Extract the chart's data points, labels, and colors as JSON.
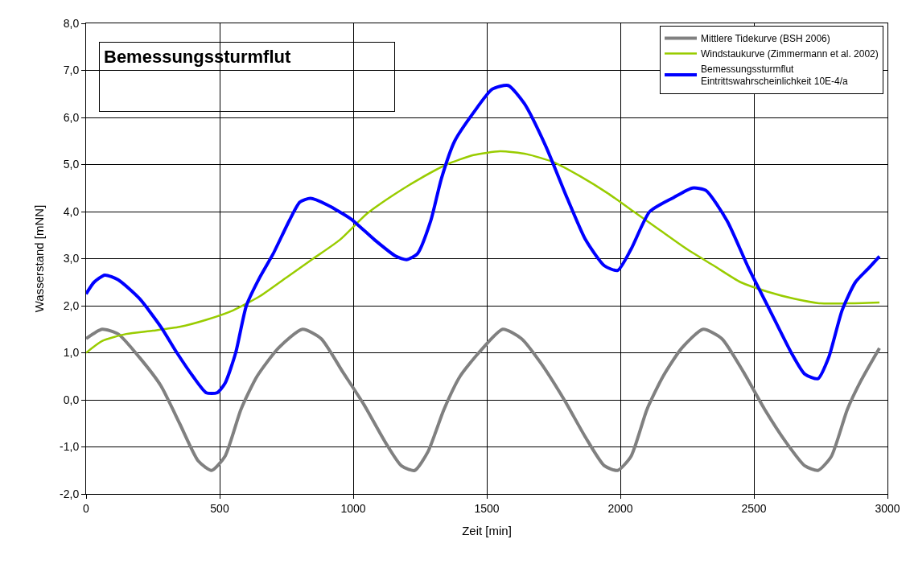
{
  "chart_data": {
    "type": "line",
    "title": "Bemessungssturmflut",
    "xlabel": "Zeit [min]",
    "ylabel": "Wasserstand [mNN]",
    "xlim": [
      0,
      3000
    ],
    "xticks": [
      0,
      500,
      1000,
      1500,
      2000,
      2500,
      3000
    ],
    "ylim": [
      -2,
      8
    ],
    "yticks": [
      {
        "value": -2,
        "label": "-2,0"
      },
      {
        "value": -1,
        "label": "-1,0"
      },
      {
        "value": 0,
        "label": "0,0"
      },
      {
        "value": 1,
        "label": "1,0"
      },
      {
        "value": 2,
        "label": "2,0"
      },
      {
        "value": 3,
        "label": "3,0"
      },
      {
        "value": 4,
        "label": "4,0"
      },
      {
        "value": 5,
        "label": "5,0"
      },
      {
        "value": 6,
        "label": "6,0"
      },
      {
        "value": 7,
        "label": "7,0"
      },
      {
        "value": 8,
        "label": "8,0"
      }
    ],
    "grid": true,
    "legend": "top right",
    "marker": "none",
    "line_style": "solid",
    "series": [
      {
        "name": "Mittlere Tidekurve (BSH 2006)",
        "color": "#808080",
        "x": [
          0,
          60,
          120,
          200,
          280,
          350,
          420,
          470,
          520,
          580,
          640,
          720,
          810,
          880,
          960,
          1040,
          1120,
          1180,
          1230,
          1280,
          1340,
          1400,
          1470,
          1560,
          1630,
          1700,
          1790,
          1870,
          1940,
          1990,
          2040,
          2100,
          2160,
          2230,
          2310,
          2380,
          2460,
          2540,
          2620,
          2690,
          2740,
          2790,
          2850,
          2900,
          2970
        ],
        "values": [
          1.3,
          1.5,
          1.4,
          0.9,
          0.3,
          -0.5,
          -1.3,
          -1.5,
          -1.2,
          -0.2,
          0.5,
          1.1,
          1.5,
          1.3,
          0.6,
          -0.1,
          -0.9,
          -1.4,
          -1.5,
          -1.1,
          -0.2,
          0.5,
          1.0,
          1.5,
          1.3,
          0.8,
          0.0,
          -0.8,
          -1.4,
          -1.5,
          -1.2,
          -0.2,
          0.5,
          1.1,
          1.5,
          1.3,
          0.6,
          -0.2,
          -0.9,
          -1.4,
          -1.5,
          -1.2,
          -0.2,
          0.4,
          1.1
        ]
      },
      {
        "name": "Windstaukurve (Zimmermann et al. 2002)",
        "color": "#99cc00",
        "x": [
          0,
          60,
          150,
          250,
          350,
          450,
          550,
          650,
          750,
          850,
          950,
          1050,
          1150,
          1250,
          1350,
          1450,
          1550,
          1650,
          1750,
          1850,
          1950,
          2050,
          2150,
          2250,
          2350,
          2450,
          2550,
          2650,
          2750,
          2850,
          2970
        ],
        "values": [
          1.0,
          1.25,
          1.4,
          1.47,
          1.55,
          1.7,
          1.9,
          2.2,
          2.6,
          3.0,
          3.4,
          3.95,
          4.35,
          4.7,
          5.0,
          5.2,
          5.28,
          5.22,
          5.05,
          4.75,
          4.4,
          4.0,
          3.6,
          3.2,
          2.85,
          2.5,
          2.3,
          2.15,
          2.05,
          2.05,
          2.07
        ]
      },
      {
        "name": "Bemessungssturmflut\nEintrittswahrscheinlichkeit 10E-4/a",
        "color": "#0000ff",
        "x": [
          0,
          30,
          70,
          120,
          200,
          280,
          340,
          400,
          450,
          490,
          520,
          560,
          600,
          650,
          700,
          760,
          800,
          840,
          900,
          990,
          1080,
          1160,
          1200,
          1240,
          1290,
          1330,
          1380,
          1450,
          1520,
          1580,
          1640,
          1720,
          1800,
          1870,
          1940,
          1990,
          2040,
          2110,
          2200,
          2270,
          2320,
          2400,
          2480,
          2560,
          2640,
          2690,
          2740,
          2780,
          2830,
          2880,
          2930,
          2970
        ],
        "values": [
          2.25,
          2.5,
          2.65,
          2.55,
          2.15,
          1.55,
          1.0,
          0.5,
          0.15,
          0.15,
          0.35,
          1.0,
          2.0,
          2.6,
          3.1,
          3.8,
          4.2,
          4.28,
          4.15,
          3.85,
          3.4,
          3.05,
          2.98,
          3.1,
          3.8,
          4.7,
          5.5,
          6.1,
          6.6,
          6.68,
          6.3,
          5.4,
          4.3,
          3.4,
          2.85,
          2.75,
          3.2,
          4.0,
          4.3,
          4.5,
          4.45,
          3.8,
          2.8,
          1.9,
          1.0,
          0.55,
          0.45,
          0.9,
          1.9,
          2.5,
          2.8,
          3.05
        ]
      }
    ]
  }
}
